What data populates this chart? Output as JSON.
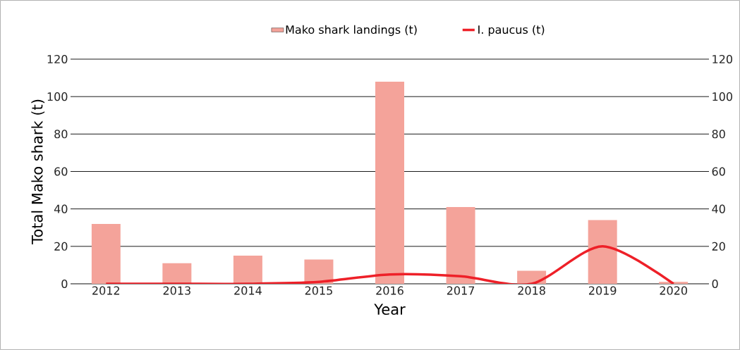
{
  "chart_data": {
    "type": "bar",
    "xlabel": "Year",
    "ylabel": "Total Mako shark (t)",
    "categories": [
      "2012",
      "2013",
      "2014",
      "2015",
      "2016",
      "2017",
      "2018",
      "2019",
      "2020"
    ],
    "series": [
      {
        "name": "Mako shark landings (t)",
        "color": "#f4a39a",
        "values": [
          32,
          11,
          15,
          13,
          108,
          41,
          7,
          34,
          1
        ]
      },
      {
        "name": "I. paucus (t)",
        "type": "line",
        "axis": "y2",
        "color": "#ee2028",
        "values": [
          0,
          0,
          0,
          1,
          5,
          4,
          0,
          20,
          0
        ]
      }
    ],
    "ylim": [
      0,
      120
    ],
    "yticks": [
      0,
      20,
      40,
      60,
      80,
      100,
      120
    ],
    "y2lim": [
      0,
      120
    ],
    "y2ticks": [
      0,
      20,
      40,
      60,
      80,
      100,
      120
    ],
    "grid": "y",
    "legend": "top",
    "marker": "none",
    "line_style": "solid"
  }
}
